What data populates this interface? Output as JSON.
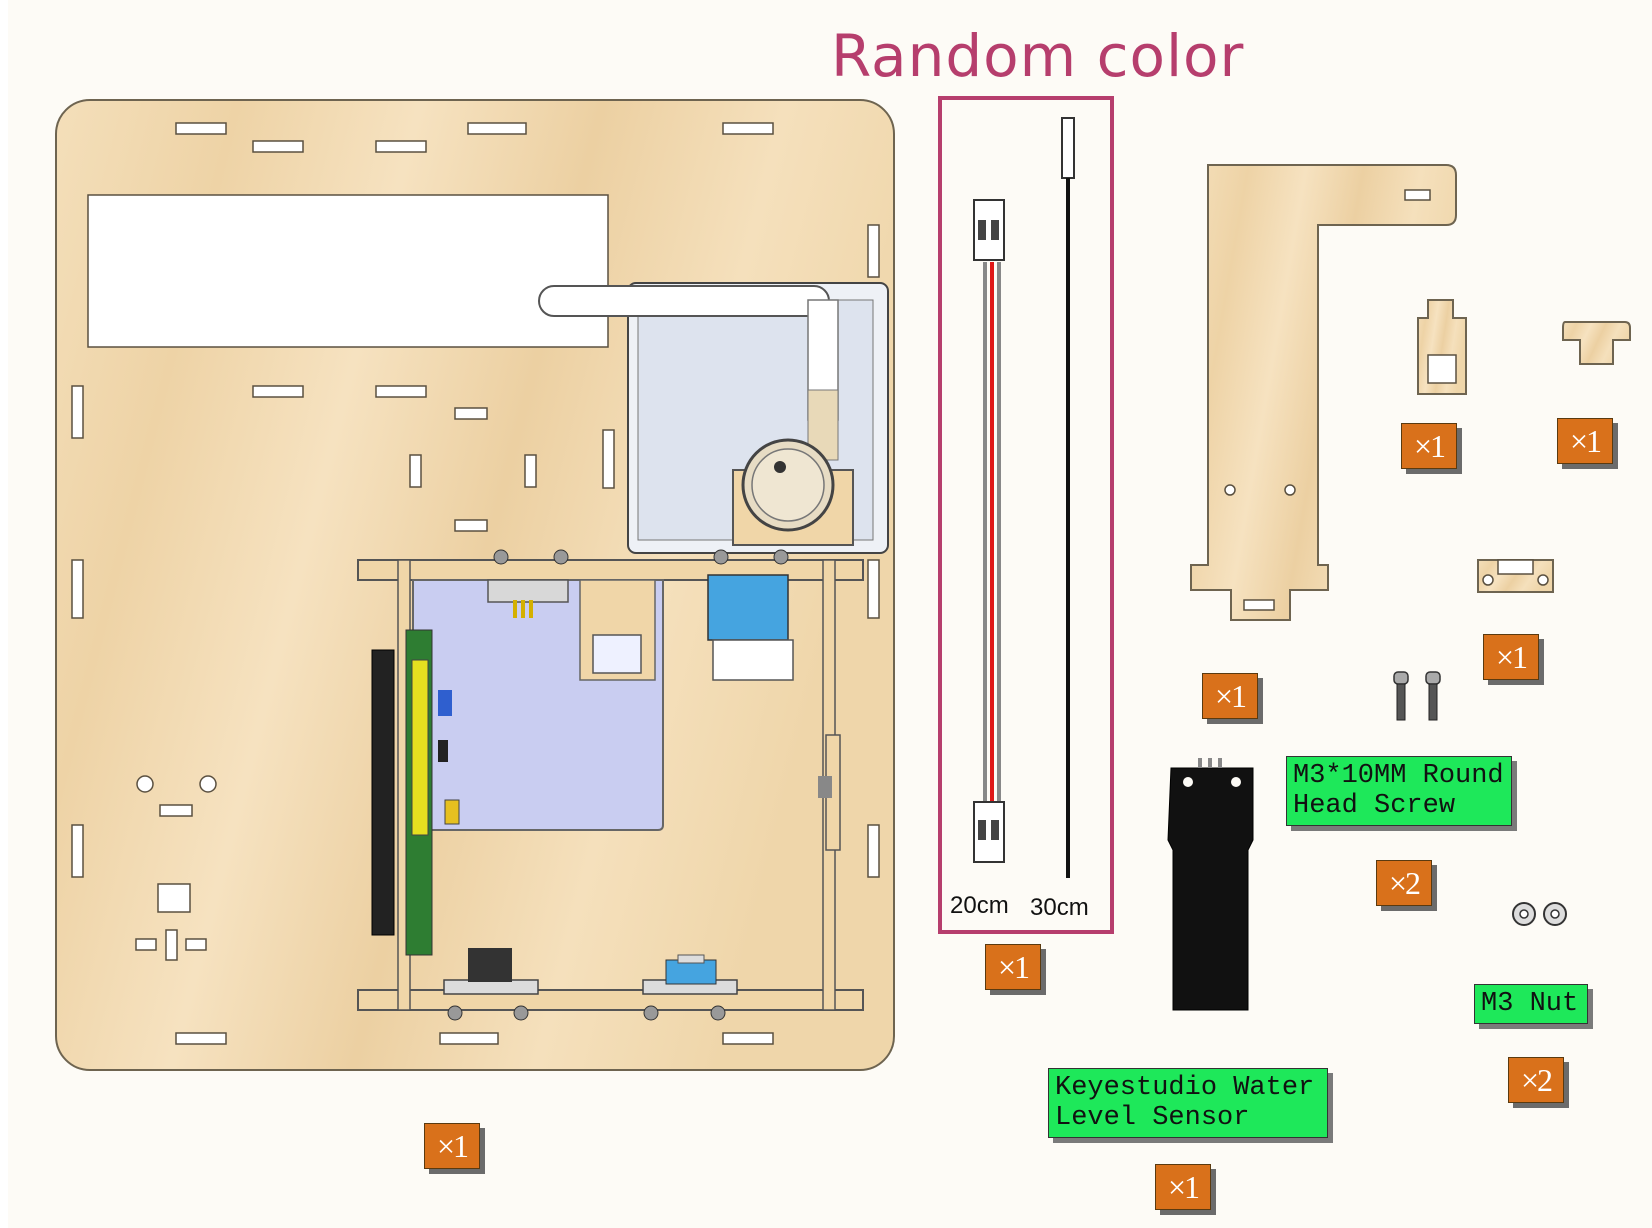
{
  "title": "Random color",
  "cables": {
    "short_length": "20cm",
    "long_length": "30cm",
    "qty": "×1"
  },
  "parts": {
    "main_board_qty": "×1",
    "l_bracket_qty": "×1",
    "small_holder_qty": "×1",
    "t_piece_qty": "×1",
    "clip_qty": "×1",
    "screw": {
      "label": "M3*10MM Round\nHead Screw",
      "qty": "×2"
    },
    "nut": {
      "label": "M3 Nut",
      "qty": "×2"
    },
    "water_sensor": {
      "label": "Keyestudio Water\nLevel Sensor",
      "qty": "×1"
    }
  },
  "colors": {
    "title": "#b63e6d",
    "qty_badge": "#d9711b",
    "label": "#1ee85a",
    "wood": "#f1d9b0"
  }
}
